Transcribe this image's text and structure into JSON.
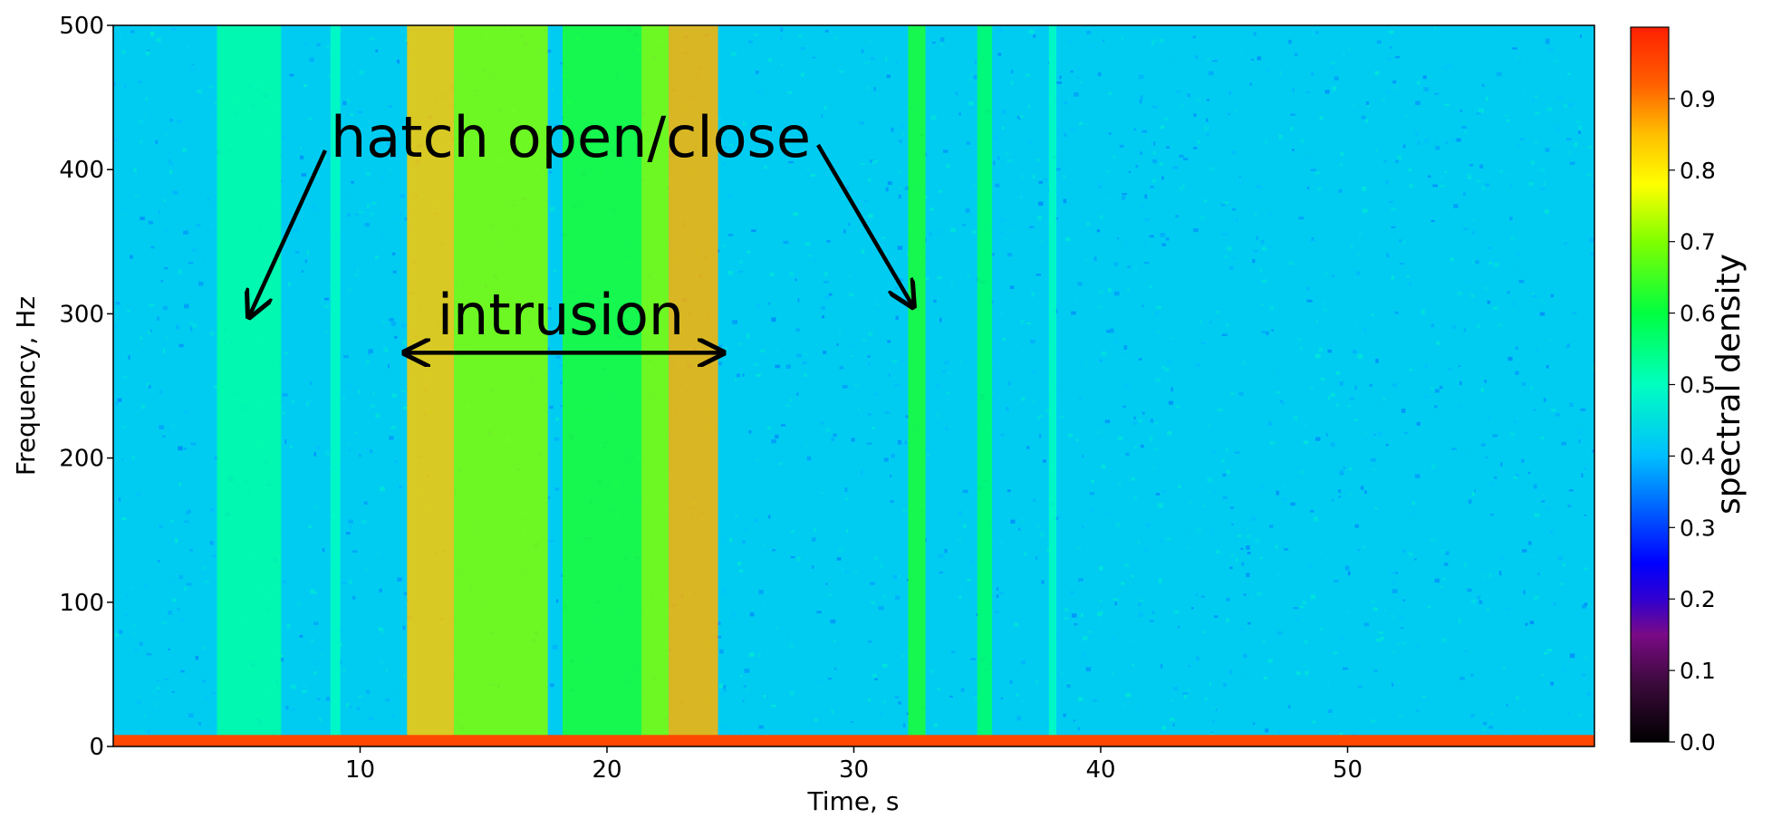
{
  "chart_data": {
    "type": "heatmap",
    "title": "",
    "xlabel": "Time, s",
    "ylabel": "Frequency, Hz",
    "xlim": [
      0,
      60
    ],
    "ylim": [
      0,
      500
    ],
    "xticks": [
      10,
      20,
      30,
      40,
      50
    ],
    "yticks": [
      0,
      100,
      200,
      300,
      400,
      500
    ],
    "colormap": "jet",
    "grid": false,
    "background_level": 0.42,
    "low_frequency_band": {
      "freq_range": [
        0,
        8
      ],
      "level": 0.95
    },
    "bands": [
      {
        "time_range": [
          4.2,
          6.8
        ],
        "level": 0.52
      },
      {
        "time_range": [
          8.8,
          9.2
        ],
        "level": 0.5
      },
      {
        "time_range": [
          11.9,
          13.8
        ],
        "level": 0.84
      },
      {
        "time_range": [
          13.8,
          17.6
        ],
        "level": 0.7
      },
      {
        "time_range": [
          18.2,
          21.4
        ],
        "level": 0.62
      },
      {
        "time_range": [
          21.4,
          22.5
        ],
        "level": 0.7
      },
      {
        "time_range": [
          22.5,
          24.5
        ],
        "level": 0.86
      },
      {
        "time_range": [
          32.2,
          32.9
        ],
        "level": 0.62
      },
      {
        "time_range": [
          35.0,
          35.6
        ],
        "level": 0.57
      },
      {
        "time_range": [
          37.9,
          38.2
        ],
        "level": 0.5
      }
    ],
    "colorbar": {
      "label": "spectral density",
      "range": [
        0.0,
        1.0
      ],
      "ticks": [
        "0.0",
        "0.1",
        "0.2",
        "0.3",
        "0.4",
        "0.5",
        "0.6",
        "0.7",
        "0.8",
        "0.9"
      ]
    },
    "annotations": [
      {
        "text": "hatch open/close",
        "arrow_targets": [
          {
            "time": 5.5,
            "freq": 298
          },
          {
            "time": 32.4,
            "freq": 305
          }
        ]
      },
      {
        "text": "intrusion",
        "span": {
          "time_range": [
            11.8,
            24.7
          ],
          "freq": 273
        }
      }
    ]
  },
  "colors": {
    "arrow": "#000000",
    "background": "#ffffff"
  }
}
